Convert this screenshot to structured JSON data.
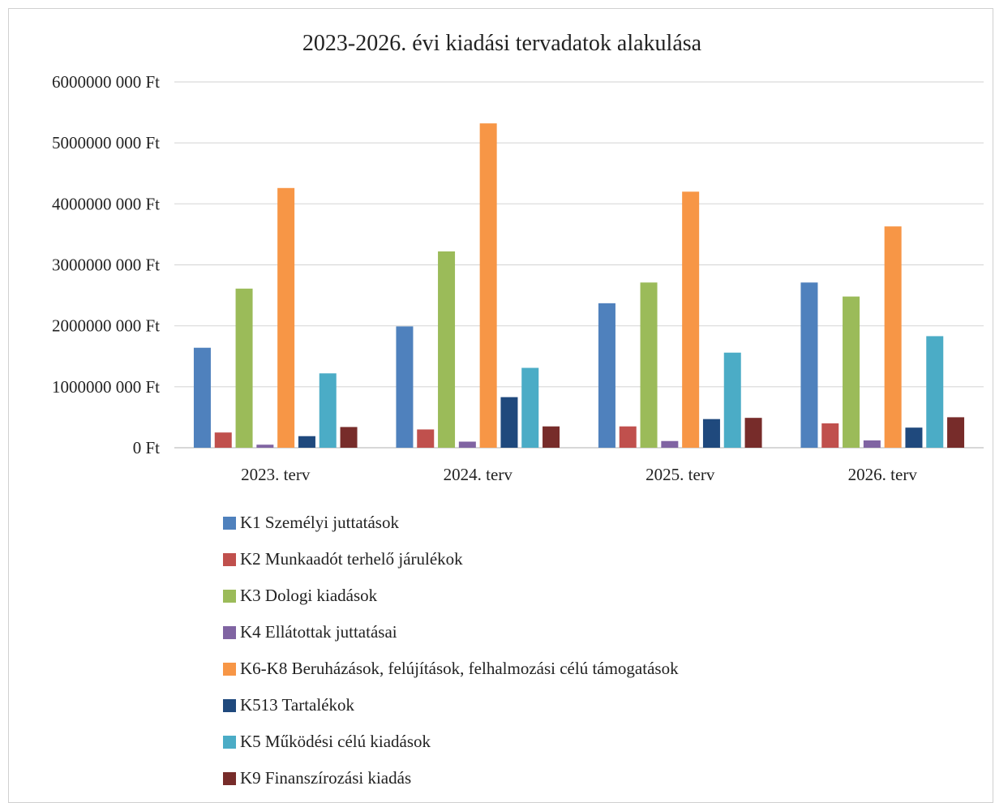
{
  "chart_data": {
    "type": "bar",
    "title": "2023-2026. évi kiadási tervadatok alakulása",
    "categories": [
      "2023. terv",
      "2024. terv",
      "2025. terv",
      "2026. terv"
    ],
    "y_tick_labels": [
      "0 Ft",
      "1000000 000 Ft",
      "2000000 000 Ft",
      "3000000 000 Ft",
      "4000000 000 Ft",
      "5000000 000 Ft",
      "6000000 000 Ft"
    ],
    "y_ticks": [
      0,
      1000000000,
      2000000000,
      3000000000,
      4000000000,
      5000000000,
      6000000000
    ],
    "ylim": [
      0,
      6000000000
    ],
    "grid": true,
    "legend_position": "bottom",
    "series": [
      {
        "name": "K1 Személyi juttatások",
        "color": "#4F81BD",
        "values": [
          1640000000,
          1990000000,
          2370000000,
          2710000000
        ]
      },
      {
        "name": "K2 Munkaadót terhelő járulékok",
        "color": "#C0504D",
        "values": [
          250000000,
          300000000,
          350000000,
          400000000
        ]
      },
      {
        "name": "K3 Dologi kiadások",
        "color": "#9BBB59",
        "values": [
          2610000000,
          3220000000,
          2710000000,
          2480000000
        ]
      },
      {
        "name": "K4 Ellátottak juttatásai",
        "color": "#8064A2",
        "values": [
          50000000,
          100000000,
          110000000,
          120000000
        ]
      },
      {
        "name": "K6-K8 Beruházások, felújítások, felhalmozási célú támogatások",
        "color": "#F79646",
        "values": [
          4260000000,
          5320000000,
          4200000000,
          3630000000
        ]
      },
      {
        "name": "K513 Tartalékok",
        "color": "#1F497D",
        "values": [
          190000000,
          830000000,
          470000000,
          330000000
        ]
      },
      {
        "name": "K5 Működési célú kiadások",
        "color": "#4BACC6",
        "values": [
          1220000000,
          1310000000,
          1560000000,
          1830000000
        ]
      },
      {
        "name": "K9 Finanszírozási kiadás",
        "color": "#772C2A",
        "values": [
          340000000,
          350000000,
          490000000,
          500000000
        ]
      }
    ]
  }
}
